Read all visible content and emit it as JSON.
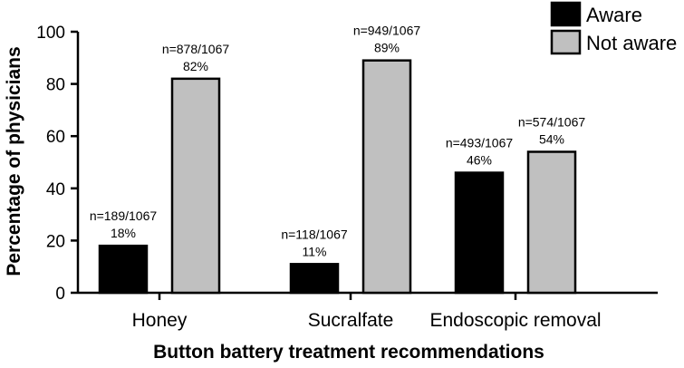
{
  "chart_data": {
    "type": "bar",
    "title": "",
    "xlabel": "Button battery treatment recommendations",
    "ylabel": "Percentage of physicians",
    "ylim": [
      0,
      100
    ],
    "yticks": [
      "0",
      "20",
      "40",
      "60",
      "80",
      "100"
    ],
    "categories": [
      "Honey",
      "Sucralfate",
      "Endoscopic removal"
    ],
    "series": [
      {
        "name": "Aware",
        "color": "#000000",
        "values": [
          18,
          11,
          46
        ],
        "labels": [
          {
            "count": "n=189/1067",
            "pct": "18%"
          },
          {
            "count": "n=118/1067",
            "pct": "11%"
          },
          {
            "count": "n=493/1067",
            "pct": "46%"
          }
        ]
      },
      {
        "name": "Not aware",
        "color": "#c0c0c0",
        "values": [
          82,
          89,
          54
        ],
        "labels": [
          {
            "count": "n=878/1067",
            "pct": "82%"
          },
          {
            "count": "n=949/1067",
            "pct": "89%"
          },
          {
            "count": "n=574/1067",
            "pct": "54%"
          }
        ]
      }
    ],
    "grid": false,
    "legend": "top-right"
  }
}
